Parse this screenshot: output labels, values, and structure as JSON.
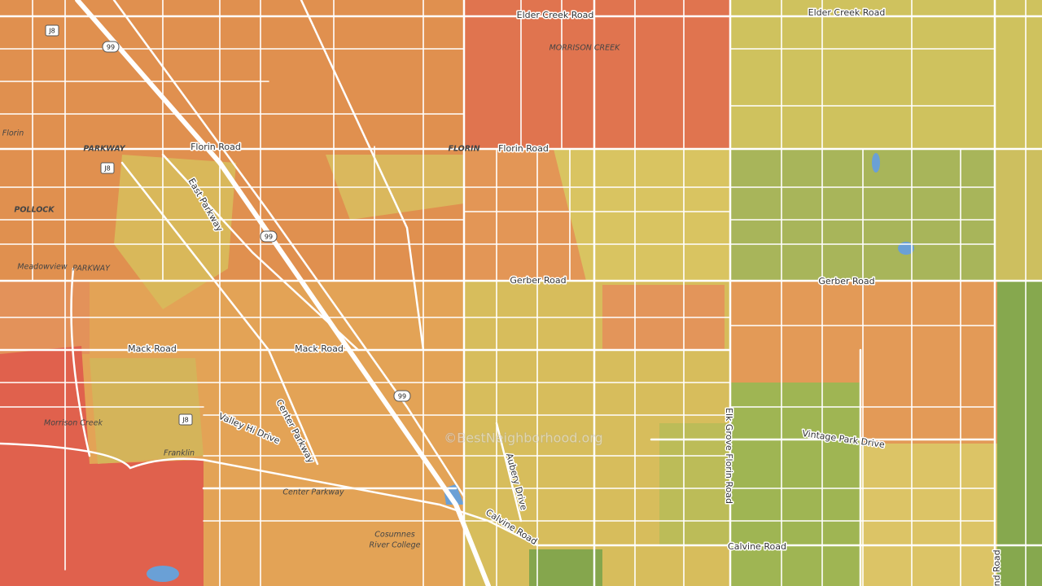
{
  "labels": [
    "Elder Creek Road",
    "Elder Creek Road",
    "MORRISON CREEK",
    "Florin",
    "PARKWAY",
    "Florin Road",
    "FLORIN",
    "Florin Road",
    "J8",
    "99",
    "J8",
    "POLLOCK",
    "East Parkway",
    "99",
    "Meadowview",
    "PARKWAY",
    "Gerber Road",
    "Gerber Road",
    "Mack Road",
    "Mack Road",
    "99",
    "Morrison Creek",
    "J8",
    "Valley Hi Drive",
    "Center Parkway",
    "Franklin",
    "©BestNeighborhood.org",
    "Aubery Drive",
    "Elk Grove Florin Road",
    "Vintage Park Drive",
    "Center Parkway",
    "Calvine Road",
    "Cosumnes",
    "River College",
    "Calvine Road",
    "Bond Road"
  ]
}
